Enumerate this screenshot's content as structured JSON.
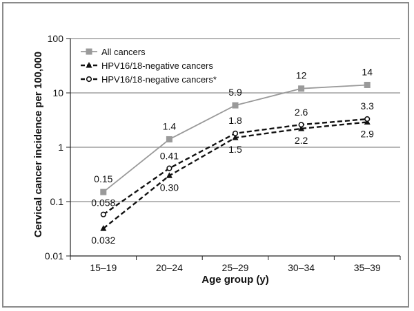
{
  "chart_data": {
    "type": "line",
    "xlabel": "Age group (y)",
    "ylabel": "Cervical cancer incidence per 100,000",
    "yscale": "log",
    "ylim": [
      0.01,
      100
    ],
    "grid": "horizontal",
    "legend_position": "top-left",
    "categories": [
      "15–19",
      "20–24",
      "25–29",
      "30–34",
      "35–39"
    ],
    "ytick_labels": [
      "0.01",
      "0.1",
      "1",
      "10",
      "100"
    ],
    "series": [
      {
        "name": "All cancers",
        "values": [
          0.15,
          1.4,
          5.9,
          12,
          14
        ],
        "labels": [
          "0.15",
          "1.4",
          "5.9",
          "12",
          "14"
        ],
        "color": "#9a9a9a",
        "line": "solid",
        "marker": "square"
      },
      {
        "name": "HPV16/18-negative cancers",
        "values": [
          0.032,
          0.3,
          1.5,
          2.2,
          2.9
        ],
        "labels": [
          "0.032",
          "0.30",
          "1.5",
          "2.2",
          "2.9"
        ],
        "color": "#111111",
        "line": "dashed",
        "marker": "triangle"
      },
      {
        "name": "HPV16/18-negative cancers*",
        "values": [
          0.058,
          0.41,
          1.8,
          2.6,
          3.3
        ],
        "labels": [
          "0.058",
          "0.41",
          "1.8",
          "2.6",
          "3.3"
        ],
        "color": "#111111",
        "line": "dashed",
        "marker": "open-circle"
      }
    ]
  }
}
